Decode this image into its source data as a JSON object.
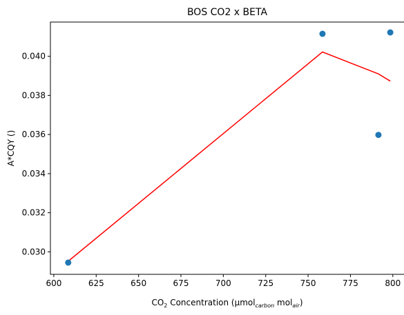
{
  "chart_data": {
    "type": "scatter",
    "title": "BOS CO2 x BETA",
    "xlabel": {
      "prefix": "CO",
      "sub1": "2",
      "mid": " Concentration (µmol",
      "sub2": "carbon",
      "mid2": " mol",
      "sub3": "air",
      "suffix": ")"
    },
    "ylabel": "A*CQY ()",
    "xlim": [
      598,
      807
    ],
    "ylim": [
      0.02885,
      0.04175
    ],
    "xticks": [
      600,
      625,
      650,
      675,
      700,
      725,
      750,
      775,
      800
    ],
    "yticks": [
      0.03,
      0.032,
      0.034,
      0.036,
      0.038,
      0.04
    ],
    "yticklabels": [
      "0.030",
      "0.032",
      "0.034",
      "0.036",
      "0.038",
      "0.040"
    ],
    "grid": false,
    "series": [
      {
        "kind": "scatter",
        "color": "#1f77b4",
        "x": [
          608.5,
          758.5,
          791.5,
          798.5
        ],
        "y": [
          0.02945,
          0.04115,
          0.03598,
          0.04122
        ]
      },
      {
        "kind": "line",
        "color": "#ff0000",
        "x": [
          608.5,
          758.5,
          791.5,
          798.5
        ],
        "y": [
          0.02952,
          0.04022,
          0.0391,
          0.03873
        ]
      }
    ]
  }
}
